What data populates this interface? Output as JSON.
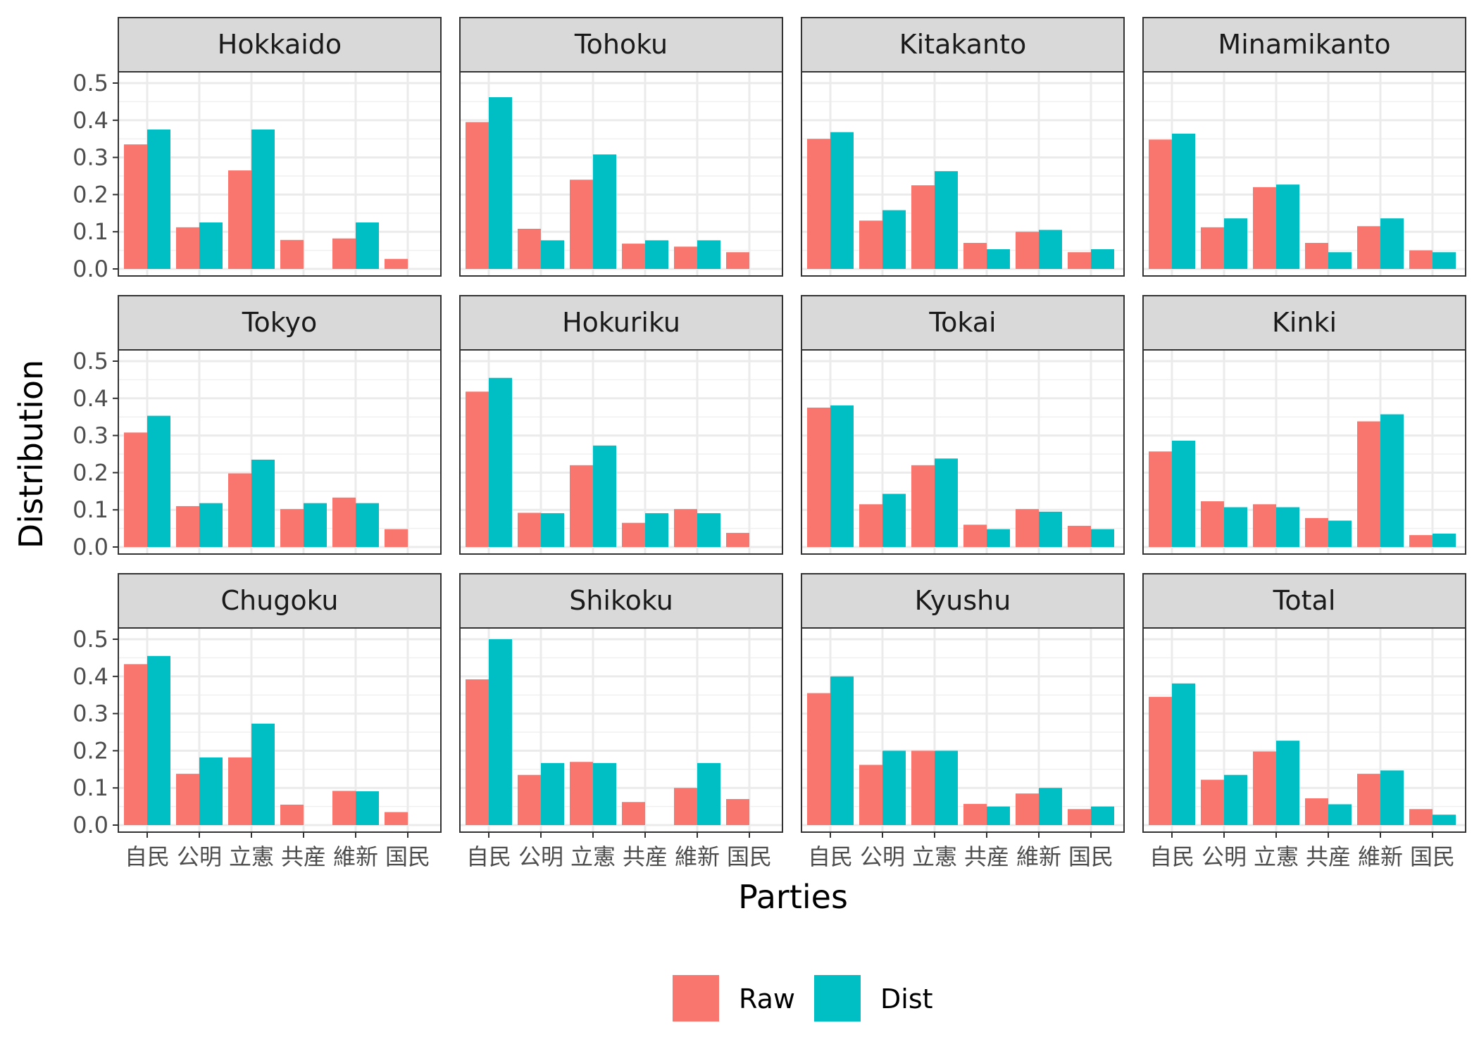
{
  "chart_data": {
    "type": "bar",
    "xlabel": "Parties",
    "ylabel": "Distribution",
    "categories": [
      "自民",
      "公明",
      "立憲",
      "共産",
      "維新",
      "国民"
    ],
    "ylim": [
      0,
      0.5
    ],
    "yticks": [
      "0.0",
      "0.1",
      "0.2",
      "0.3",
      "0.4",
      "0.5"
    ],
    "legend": {
      "position": "bottom",
      "entries": [
        {
          "name": "Raw",
          "color": "#F8766D"
        },
        {
          "name": "Dist",
          "color": "#00BFC4"
        }
      ]
    },
    "grid": true,
    "panels": [
      {
        "name": "Hokkaido",
        "series": [
          {
            "name": "Raw",
            "values": [
              0.335,
              0.112,
              0.265,
              0.078,
              0.082,
              0.027
            ]
          },
          {
            "name": "Dist",
            "values": [
              0.375,
              0.125,
              0.375,
              0.0,
              0.125,
              0.0
            ]
          }
        ]
      },
      {
        "name": "Tohoku",
        "series": [
          {
            "name": "Raw",
            "values": [
              0.395,
              0.108,
              0.24,
              0.068,
              0.06,
              0.045
            ]
          },
          {
            "name": "Dist",
            "values": [
              0.462,
              0.077,
              0.308,
              0.077,
              0.077,
              0.0
            ]
          }
        ]
      },
      {
        "name": "Kitakanto",
        "series": [
          {
            "name": "Raw",
            "values": [
              0.35,
              0.13,
              0.225,
              0.07,
              0.1,
              0.045
            ]
          },
          {
            "name": "Dist",
            "values": [
              0.368,
              0.158,
              0.263,
              0.053,
              0.105,
              0.053
            ]
          }
        ]
      },
      {
        "name": "Minamikanto",
        "series": [
          {
            "name": "Raw",
            "values": [
              0.348,
              0.112,
              0.22,
              0.07,
              0.115,
              0.05
            ]
          },
          {
            "name": "Dist",
            "values": [
              0.364,
              0.136,
              0.227,
              0.045,
              0.136,
              0.045
            ]
          }
        ]
      },
      {
        "name": "Tokyo",
        "series": [
          {
            "name": "Raw",
            "values": [
              0.308,
              0.11,
              0.198,
              0.102,
              0.133,
              0.048
            ]
          },
          {
            "name": "Dist",
            "values": [
              0.353,
              0.118,
              0.235,
              0.118,
              0.118,
              0.0
            ]
          }
        ]
      },
      {
        "name": "Hokuriku",
        "series": [
          {
            "name": "Raw",
            "values": [
              0.418,
              0.092,
              0.22,
              0.065,
              0.102,
              0.038
            ]
          },
          {
            "name": "Dist",
            "values": [
              0.455,
              0.091,
              0.273,
              0.091,
              0.091,
              0.0
            ]
          }
        ]
      },
      {
        "name": "Tokai",
        "series": [
          {
            "name": "Raw",
            "values": [
              0.375,
              0.115,
              0.22,
              0.06,
              0.102,
              0.057
            ]
          },
          {
            "name": "Dist",
            "values": [
              0.381,
              0.143,
              0.238,
              0.048,
              0.095,
              0.048
            ]
          }
        ]
      },
      {
        "name": "Kinki",
        "series": [
          {
            "name": "Raw",
            "values": [
              0.257,
              0.123,
              0.115,
              0.078,
              0.338,
              0.032
            ]
          },
          {
            "name": "Dist",
            "values": [
              0.286,
              0.107,
              0.107,
              0.071,
              0.357,
              0.036
            ]
          }
        ]
      },
      {
        "name": "Chugoku",
        "series": [
          {
            "name": "Raw",
            "values": [
              0.433,
              0.138,
              0.182,
              0.055,
              0.092,
              0.035
            ]
          },
          {
            "name": "Dist",
            "values": [
              0.455,
              0.182,
              0.273,
              0.0,
              0.091,
              0.0
            ]
          }
        ]
      },
      {
        "name": "Shikoku",
        "series": [
          {
            "name": "Raw",
            "values": [
              0.392,
              0.135,
              0.17,
              0.062,
              0.1,
              0.07
            ]
          },
          {
            "name": "Dist",
            "values": [
              0.5,
              0.167,
              0.167,
              0.0,
              0.167,
              0.0
            ]
          }
        ]
      },
      {
        "name": "Kyushu",
        "series": [
          {
            "name": "Raw",
            "values": [
              0.355,
              0.162,
              0.2,
              0.057,
              0.085,
              0.043
            ]
          },
          {
            "name": "Dist",
            "values": [
              0.4,
              0.2,
              0.2,
              0.05,
              0.1,
              0.05
            ]
          }
        ]
      },
      {
        "name": "Total",
        "series": [
          {
            "name": "Raw",
            "values": [
              0.345,
              0.122,
              0.198,
              0.072,
              0.138,
              0.043
            ]
          },
          {
            "name": "Dist",
            "values": [
              0.381,
              0.135,
              0.227,
              0.056,
              0.147,
              0.028
            ]
          }
        ]
      }
    ]
  }
}
